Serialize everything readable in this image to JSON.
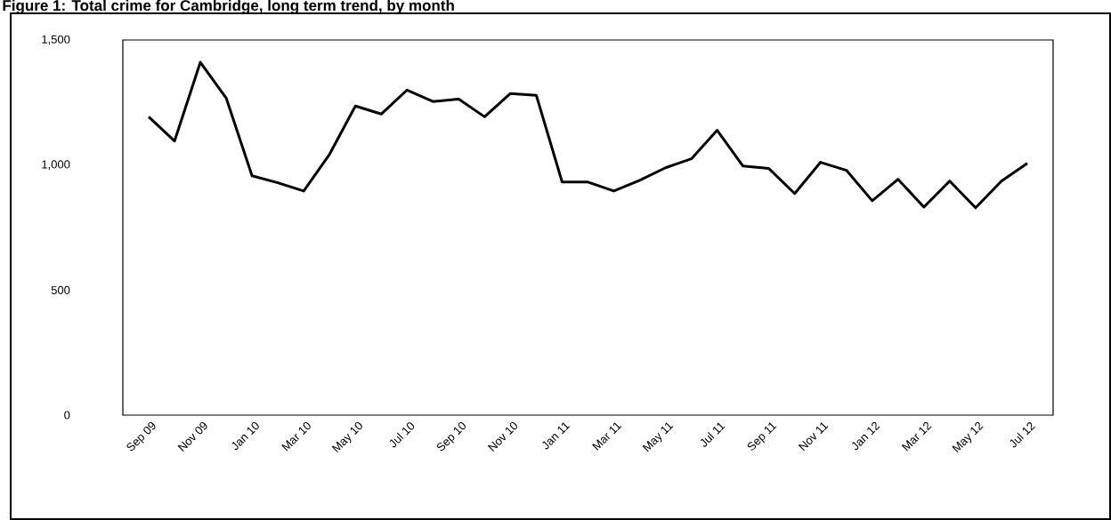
{
  "chart_data": {
    "type": "line",
    "title": "Figure 1: Total crime for Cambridge, long term trend, by month",
    "categories": [
      "Sep 09",
      null,
      "Nov 09",
      null,
      "Jan 10",
      null,
      "Mar 10",
      null,
      "May 10",
      null,
      "Jul 10",
      null,
      "Sep 10",
      null,
      "Nov 10",
      null,
      "Jan 11",
      null,
      "Mar 11",
      null,
      "May 11",
      null,
      "Jul 11",
      null,
      "Sep 11",
      null,
      "Nov 11",
      null,
      "Jan 12",
      null,
      "Mar 12",
      null,
      "May 12",
      null,
      "Jul 12"
    ],
    "values": [
      1193,
      1096,
      1411,
      1268,
      957,
      929,
      896,
      1043,
      1236,
      1204,
      1300,
      1254,
      1264,
      1193,
      1286,
      1279,
      932,
      932,
      896,
      939,
      989,
      1025,
      1139,
      996,
      986,
      886,
      1011,
      979,
      857,
      943,
      832,
      936,
      829,
      936,
      1007
    ],
    "color": "#000000",
    "ylim": [
      0,
      1500
    ],
    "yticks": [
      0,
      500,
      {
        "value": 1000,
        "label": "1,000"
      },
      {
        "value": 1500,
        "label": "1,500"
      }
    ],
    "marker": "none",
    "line_style": "solid"
  }
}
